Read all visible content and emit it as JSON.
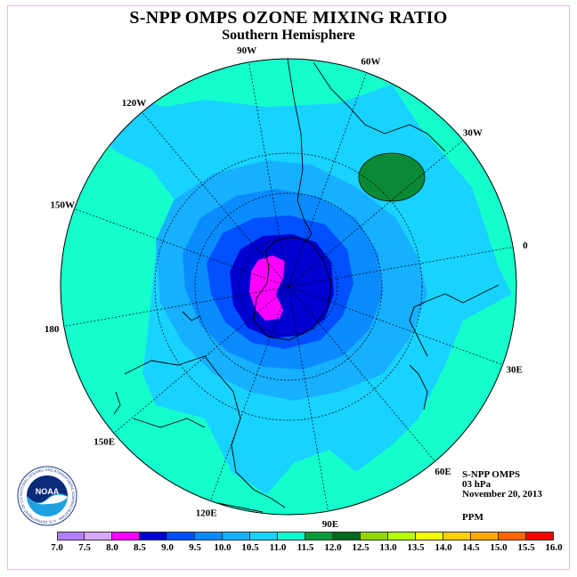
{
  "header": {
    "title": "S-NPP OMPS OZONE MIXING RATIO",
    "subtitle": "Southern Hemisphere"
  },
  "map": {
    "projection": "south polar stereographic",
    "longitude_labels": [
      "90W",
      "60W",
      "30W",
      "0",
      "30E",
      "60E",
      "90E",
      "120E",
      "150E",
      "180",
      "150W",
      "120W"
    ],
    "background_level": "10.5-11.0",
    "features": {
      "polar_minimum_value": "8.0-8.5",
      "high_over_south_atlantic": "11.5-12.0"
    }
  },
  "info": {
    "instrument": "S-NPP OMPS",
    "level": "03 hPa",
    "date": "November 20, 2013",
    "units": "PPM"
  },
  "logo": {
    "text": "NOAA",
    "ring_text": "NATIONAL OCEANIC AND ATMOSPHERIC ADMINISTRATION · U.S. DEPARTMENT OF COMMERCE"
  },
  "colorbar": {
    "ticks": [
      "7.0",
      "7.5",
      "8.0",
      "8.5",
      "9.0",
      "9.5",
      "10.0",
      "10.5",
      "11.0",
      "11.5",
      "12.0",
      "12.5",
      "13.0",
      "13.5",
      "14.0",
      "14.5",
      "15.0",
      "15.5",
      "16.0"
    ],
    "colors": [
      "#b27fff",
      "#d8a8ff",
      "#ff00ff",
      "#0000d0",
      "#0050ff",
      "#0a8cff",
      "#16b0ff",
      "#18d2ff",
      "#14ffcc",
      "#0a9a3a",
      "#006a20",
      "#90d800",
      "#b8ff00",
      "#f0ff00",
      "#ffd000",
      "#ffa800",
      "#ff6600",
      "#ff0000",
      "#6e4e3a"
    ]
  }
}
